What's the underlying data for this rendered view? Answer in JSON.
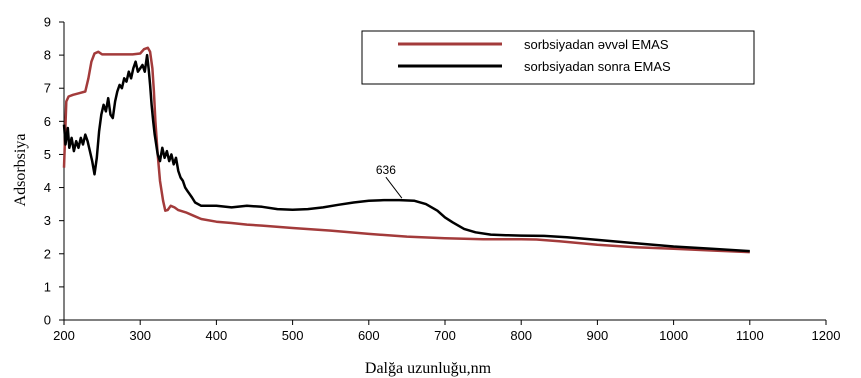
{
  "chart_data": {
    "type": "line",
    "title": "",
    "xlabel": "Dalğa uzunluğu,nm",
    "ylabel": "Adsorbsiya",
    "xlim": [
      200,
      1200
    ],
    "ylim": [
      0,
      9
    ],
    "x_ticks": [
      200,
      300,
      400,
      500,
      600,
      700,
      800,
      900,
      1000,
      1100,
      1200
    ],
    "y_ticks": [
      0,
      1,
      2,
      3,
      4,
      5,
      6,
      7,
      8,
      9
    ],
    "grid": false,
    "legend_position": "top-right",
    "series": [
      {
        "name": "sorbsiyadan  əvvəl EMAS",
        "color": "#a33b3b",
        "points": [
          [
            200,
            4.6
          ],
          [
            203,
            6.6
          ],
          [
            206,
            6.75
          ],
          [
            212,
            6.8
          ],
          [
            220,
            6.85
          ],
          [
            228,
            6.9
          ],
          [
            232,
            7.3
          ],
          [
            236,
            7.8
          ],
          [
            240,
            8.05
          ],
          [
            245,
            8.1
          ],
          [
            250,
            8.02
          ],
          [
            270,
            8.02
          ],
          [
            290,
            8.02
          ],
          [
            300,
            8.05
          ],
          [
            305,
            8.18
          ],
          [
            310,
            8.22
          ],
          [
            313,
            8.1
          ],
          [
            316,
            7.6
          ],
          [
            318,
            6.9
          ],
          [
            320,
            6.0
          ],
          [
            323,
            5.0
          ],
          [
            326,
            4.2
          ],
          [
            330,
            3.6
          ],
          [
            333,
            3.3
          ],
          [
            336,
            3.32
          ],
          [
            340,
            3.45
          ],
          [
            345,
            3.4
          ],
          [
            350,
            3.32
          ],
          [
            360,
            3.25
          ],
          [
            370,
            3.15
          ],
          [
            380,
            3.05
          ],
          [
            400,
            2.97
          ],
          [
            420,
            2.93
          ],
          [
            440,
            2.88
          ],
          [
            460,
            2.85
          ],
          [
            500,
            2.78
          ],
          [
            550,
            2.7
          ],
          [
            600,
            2.6
          ],
          [
            650,
            2.52
          ],
          [
            700,
            2.47
          ],
          [
            750,
            2.44
          ],
          [
            800,
            2.44
          ],
          [
            820,
            2.43
          ],
          [
            850,
            2.38
          ],
          [
            900,
            2.27
          ],
          [
            950,
            2.2
          ],
          [
            1000,
            2.15
          ],
          [
            1050,
            2.1
          ],
          [
            1100,
            2.05
          ]
        ]
      },
      {
        "name": "sorbsiyadan  sonra EMAS",
        "color": "#000000",
        "points": [
          [
            200,
            5.9
          ],
          [
            202,
            5.3
          ],
          [
            205,
            5.8
          ],
          [
            207,
            5.2
          ],
          [
            210,
            5.5
          ],
          [
            213,
            5.1
          ],
          [
            216,
            5.4
          ],
          [
            219,
            5.2
          ],
          [
            222,
            5.5
          ],
          [
            225,
            5.3
          ],
          [
            228,
            5.6
          ],
          [
            231,
            5.4
          ],
          [
            234,
            5.1
          ],
          [
            237,
            4.8
          ],
          [
            240,
            4.4
          ],
          [
            243,
            4.9
          ],
          [
            246,
            5.7
          ],
          [
            249,
            6.2
          ],
          [
            252,
            6.5
          ],
          [
            255,
            6.3
          ],
          [
            258,
            6.7
          ],
          [
            261,
            6.2
          ],
          [
            264,
            6.1
          ],
          [
            267,
            6.6
          ],
          [
            270,
            6.9
          ],
          [
            273,
            7.1
          ],
          [
            276,
            7.0
          ],
          [
            279,
            7.3
          ],
          [
            282,
            7.2
          ],
          [
            285,
            7.5
          ],
          [
            288,
            7.3
          ],
          [
            291,
            7.6
          ],
          [
            294,
            7.8
          ],
          [
            297,
            7.5
          ],
          [
            300,
            7.6
          ],
          [
            303,
            7.7
          ],
          [
            306,
            7.5
          ],
          [
            309,
            8.0
          ],
          [
            311,
            7.6
          ],
          [
            313,
            7.1
          ],
          [
            315,
            6.5
          ],
          [
            317,
            6.0
          ],
          [
            319,
            5.6
          ],
          [
            321,
            5.3
          ],
          [
            323,
            5.0
          ],
          [
            326,
            4.8
          ],
          [
            329,
            5.2
          ],
          [
            332,
            4.9
          ],
          [
            335,
            5.1
          ],
          [
            338,
            4.8
          ],
          [
            341,
            5.0
          ],
          [
            344,
            4.7
          ],
          [
            347,
            4.9
          ],
          [
            350,
            4.5
          ],
          [
            353,
            4.3
          ],
          [
            356,
            4.2
          ],
          [
            359,
            4.0
          ],
          [
            362,
            3.9
          ],
          [
            365,
            3.8
          ],
          [
            368,
            3.7
          ],
          [
            372,
            3.55
          ],
          [
            380,
            3.45
          ],
          [
            400,
            3.45
          ],
          [
            420,
            3.4
          ],
          [
            440,
            3.45
          ],
          [
            460,
            3.42
          ],
          [
            480,
            3.35
          ],
          [
            500,
            3.33
          ],
          [
            520,
            3.35
          ],
          [
            540,
            3.4
          ],
          [
            560,
            3.48
          ],
          [
            580,
            3.55
          ],
          [
            600,
            3.6
          ],
          [
            620,
            3.62
          ],
          [
            640,
            3.62
          ],
          [
            660,
            3.6
          ],
          [
            675,
            3.5
          ],
          [
            690,
            3.3
          ],
          [
            700,
            3.1
          ],
          [
            710,
            2.95
          ],
          [
            725,
            2.75
          ],
          [
            740,
            2.65
          ],
          [
            760,
            2.58
          ],
          [
            780,
            2.56
          ],
          [
            800,
            2.55
          ],
          [
            830,
            2.54
          ],
          [
            860,
            2.5
          ],
          [
            900,
            2.42
          ],
          [
            950,
            2.32
          ],
          [
            1000,
            2.22
          ],
          [
            1050,
            2.15
          ],
          [
            1100,
            2.08
          ]
        ]
      }
    ],
    "annotations": [
      {
        "text": "636",
        "x": 650,
        "y": 3.62
      }
    ]
  }
}
